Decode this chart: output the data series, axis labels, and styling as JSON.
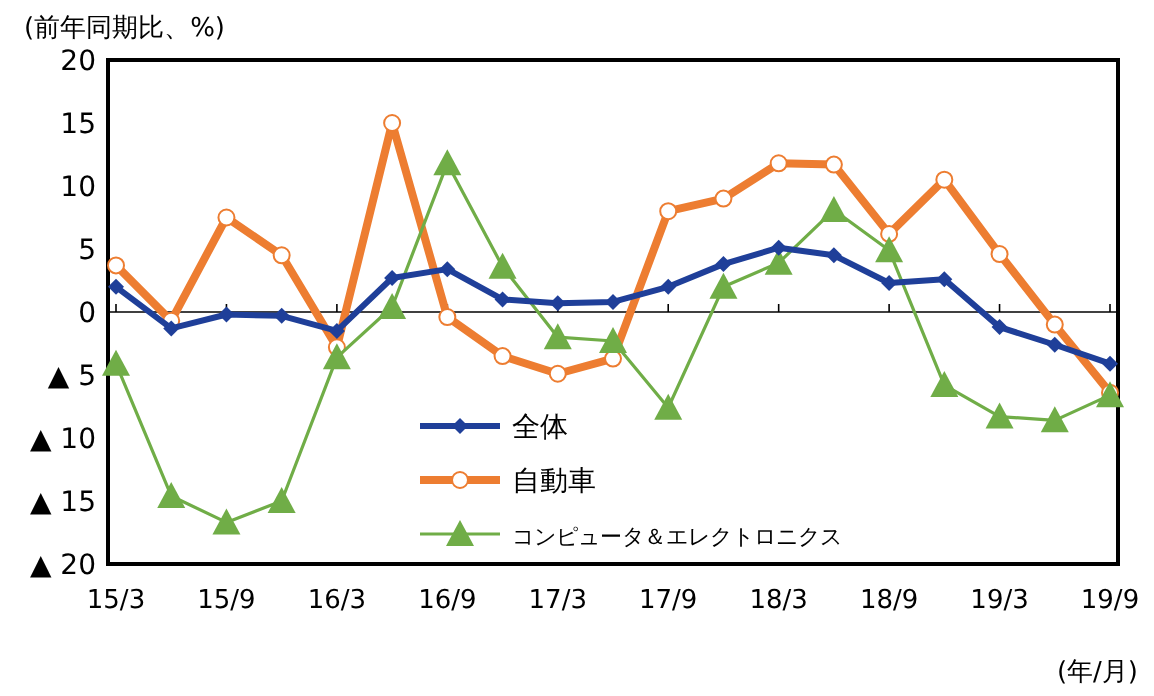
{
  "chart_data": {
    "type": "line",
    "ylabel": "(前年同期比、%)",
    "xlabel": "(年/月)",
    "categories": [
      "15/3",
      null,
      "15/9",
      null,
      "16/3",
      null,
      "16/9",
      null,
      "17/3",
      null,
      "17/9",
      null,
      "18/3",
      null,
      "18/9",
      null,
      "19/3",
      null,
      "19/9"
    ],
    "ylim": [
      -20,
      20
    ],
    "yticks": [
      20,
      15,
      10,
      5,
      0,
      {
        "value": -5,
        "label": "▲ 5"
      },
      {
        "value": -10,
        "label": "▲ 10"
      },
      {
        "value": -15,
        "label": "▲ 15"
      },
      {
        "value": -20,
        "label": "▲ 20"
      }
    ],
    "series": [
      {
        "name": "全体",
        "color": "#1f3f99",
        "marker": "diamond",
        "values": [
          2.0,
          -1.3,
          -0.2,
          -0.3,
          -1.5,
          2.7,
          3.4,
          1.0,
          0.7,
          0.8,
          2.0,
          3.8,
          5.1,
          4.5,
          2.3,
          2.6,
          -1.2,
          -2.6,
          -4.1
        ]
      },
      {
        "name": "自動車",
        "color": "#ed7d31",
        "marker": "circle",
        "values": [
          3.7,
          -0.7,
          7.5,
          4.5,
          -2.8,
          15.0,
          -0.4,
          -3.5,
          -4.9,
          -3.7,
          8.0,
          9.0,
          11.8,
          11.7,
          6.2,
          10.5,
          4.6,
          -1.0,
          -6.4
        ]
      },
      {
        "name": "コンピュータ＆エレクトロニクス",
        "color": "#70ad47",
        "marker": "triangle",
        "values": [
          -4.1,
          -14.6,
          -16.7,
          -15.0,
          -3.6,
          0.4,
          11.8,
          3.6,
          -2.0,
          -2.3,
          -7.6,
          2.0,
          3.9,
          8.1,
          4.9,
          -5.8,
          -8.3,
          -8.6,
          -6.6
        ]
      }
    ],
    "legend": "bottom",
    "line_style": "solid"
  }
}
